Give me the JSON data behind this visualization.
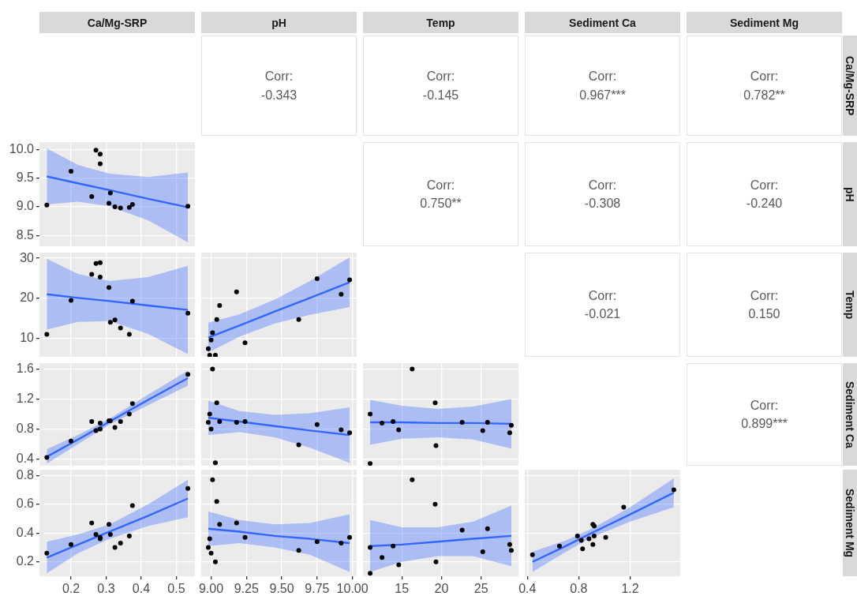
{
  "chart_data": [
    {
      "type": "other",
      "title": "Ca/Mg-SRP"
    },
    {
      "type": "other",
      "title": "pH",
      "annotations": [
        "Corr:",
        "-0.343"
      ]
    },
    {
      "type": "other",
      "title": "Temp",
      "annotations": [
        "Corr:",
        "-0.145"
      ]
    },
    {
      "type": "other",
      "title": "Sediment Ca",
      "annotations": [
        "Corr:",
        "0.967***"
      ]
    },
    {
      "type": "other",
      "title": "Sediment Mg",
      "y2label": "Ca/Mg-SRP",
      "annotations": [
        "Corr:",
        "0.782**"
      ]
    },
    {
      "type": "scatter",
      "xlim": [
        0.11,
        0.553
      ],
      "xticks": [
        0.2,
        0.3,
        0.4,
        0.5
      ],
      "ylim": [
        8.31,
        10.13
      ],
      "yticks": [
        {
          "value": 8.5,
          "label": "8.5"
        },
        {
          "value": 9,
          "label": "9.0"
        },
        9.5,
        {
          "value": 10,
          "label": "10.0"
        }
      ],
      "grid": true,
      "tick_labels": "y",
      "series": [
        {
          "type": "scatter",
          "color": "#000000",
          "x": [
            0.131,
            0.2,
            0.259,
            0.271,
            0.283,
            0.283,
            0.308,
            0.312,
            0.325,
            0.341,
            0.366,
            0.375,
            0.533
          ],
          "values": [
            9.03,
            9.62,
            9.18,
            9.99,
            9.92,
            9.75,
            9.06,
            9.24,
            9.0,
            8.98,
            8.99,
            9.04,
            9.01
          ]
        },
        {
          "type": "line",
          "color": "#3366ff",
          "x": [
            0.131,
            0.22,
            0.31,
            0.42,
            0.533
          ],
          "values": [
            9.53,
            9.41,
            9.29,
            9.14,
            8.99
          ],
          "lower": [
            9.04,
            9.09,
            9.01,
            8.76,
            8.38
          ],
          "upper": [
            10.02,
            9.73,
            9.58,
            9.52,
            9.6
          ]
        }
      ]
    },
    {
      "type": "other",
      "annotations": [
        "Corr:",
        "0.750**"
      ]
    },
    {
      "type": "other",
      "annotations": [
        "Corr:",
        "-0.308"
      ]
    },
    {
      "type": "other",
      "y2label": "pH",
      "annotations": [
        "Corr:",
        "-0.240"
      ]
    },
    {
      "type": "scatter",
      "xlim": [
        0.11,
        0.553
      ],
      "xticks": [
        0.2,
        0.3,
        0.4,
        0.5
      ],
      "ylim": [
        5.4,
        31.4
      ],
      "yticks": [
        10,
        20,
        30
      ],
      "grid": true,
      "tick_labels": "y",
      "series": [
        {
          "type": "scatter",
          "color": "#000000",
          "x": [
            0.131,
            0.2,
            0.259,
            0.271,
            0.283,
            0.283,
            0.308,
            0.312,
            0.325,
            0.341,
            0.366,
            0.375,
            0.533
          ],
          "values": [
            11.0,
            19.5,
            26.0,
            28.7,
            28.9,
            25.3,
            22.7,
            14.0,
            14.6,
            12.6,
            11.0,
            19.3,
            16.3
          ]
        },
        {
          "type": "line",
          "color": "#3366ff",
          "x": [
            0.131,
            0.22,
            0.31,
            0.42,
            0.533
          ],
          "values": [
            21.0,
            20.1,
            19.3,
            18.2,
            17.1
          ],
          "lower": [
            12.2,
            14.1,
            14.3,
            11.1,
            6.1
          ],
          "upper": [
            29.8,
            26.1,
            24.3,
            25.3,
            28.1
          ]
        }
      ]
    },
    {
      "type": "scatter",
      "xlim": [
        8.93,
        10.03
      ],
      "xticks": [
        9,
        9.25,
        9.5,
        9.75,
        10
      ],
      "ylim": [
        5.4,
        31.4
      ],
      "yticks": [
        10,
        20,
        30
      ],
      "grid": true,
      "tick_labels": false,
      "series": [
        {
          "type": "scatter",
          "color": "#000000",
          "x": [
            8.98,
            8.99,
            9.0,
            9.01,
            9.03,
            9.04,
            9.06,
            9.18,
            9.24,
            9.62,
            9.75,
            9.92,
            9.98
          ],
          "values": [
            7.4,
            5.8,
            9.6,
            11.4,
            5.8,
            14.7,
            18.2,
            21.6,
            8.9,
            14.7,
            24.9,
            21.0,
            24.6
          ]
        },
        {
          "type": "line",
          "color": "#3366ff",
          "x": [
            8.98,
            9.2,
            9.45,
            9.7,
            9.98
          ],
          "values": [
            10.2,
            13.2,
            16.7,
            20.1,
            24.0
          ],
          "lower": [
            6.5,
            10.4,
            13.7,
            15.9,
            17.8
          ],
          "upper": [
            13.9,
            16.0,
            19.7,
            24.3,
            30.2
          ]
        }
      ]
    },
    {
      "type": "other",
      "annotations": [
        "Corr:",
        "-0.021"
      ]
    },
    {
      "type": "other",
      "y2label": "Temp",
      "annotations": [
        "Corr:",
        "0.150"
      ]
    },
    {
      "type": "scatter",
      "xlim": [
        0.11,
        0.553
      ],
      "xticks": [
        0.2,
        0.3,
        0.4,
        0.5
      ],
      "ylim": [
        0.31,
        1.68
      ],
      "yticks": [
        0.4,
        0.8,
        1.2,
        1.6
      ],
      "grid": true,
      "tick_labels": "y",
      "series": [
        {
          "type": "scatter",
          "color": "#000000",
          "x": [
            0.131,
            0.2,
            0.259,
            0.271,
            0.283,
            0.283,
            0.308,
            0.312,
            0.325,
            0.341,
            0.366,
            0.375,
            0.533
          ],
          "values": [
            0.42,
            0.64,
            0.9,
            0.78,
            0.88,
            0.8,
            0.91,
            0.91,
            0.82,
            0.9,
            1.0,
            1.14,
            1.53
          ]
        },
        {
          "type": "line",
          "color": "#3366ff",
          "x": [
            0.131,
            0.22,
            0.31,
            0.42,
            0.533
          ],
          "values": [
            0.43,
            0.66,
            0.9,
            1.19,
            1.48
          ],
          "lower": [
            0.34,
            0.6,
            0.86,
            1.12,
            1.38
          ],
          "upper": [
            0.53,
            0.72,
            0.94,
            1.26,
            1.58
          ]
        }
      ]
    },
    {
      "type": "scatter",
      "xlim": [
        8.93,
        10.03
      ],
      "xticks": [
        9,
        9.25,
        9.5,
        9.75,
        10
      ],
      "ylim": [
        0.31,
        1.68
      ],
      "yticks": [
        0.4,
        0.8,
        1.2,
        1.6
      ],
      "grid": true,
      "tick_labels": false,
      "series": [
        {
          "type": "scatter",
          "color": "#000000",
          "x": [
            8.98,
            8.99,
            9.0,
            9.01,
            9.03,
            9.04,
            9.06,
            9.18,
            9.24,
            9.62,
            9.75,
            9.92,
            9.98
          ],
          "values": [
            0.89,
            1.0,
            0.8,
            1.6,
            0.35,
            1.15,
            0.9,
            0.89,
            0.9,
            0.59,
            0.86,
            0.79,
            0.75
          ]
        },
        {
          "type": "line",
          "color": "#3366ff",
          "x": [
            8.98,
            9.2,
            9.45,
            9.7,
            9.98
          ],
          "values": [
            0.95,
            0.9,
            0.84,
            0.78,
            0.72
          ],
          "lower": [
            0.72,
            0.76,
            0.69,
            0.55,
            0.35
          ],
          "upper": [
            1.18,
            1.04,
            0.99,
            1.01,
            1.09
          ]
        }
      ]
    },
    {
      "type": "scatter",
      "xlim": [
        10.1,
        29.7
      ],
      "xticks": [
        15,
        20,
        25
      ],
      "ylim": [
        0.31,
        1.68
      ],
      "yticks": [
        0.4,
        0.8,
        1.2,
        1.6
      ],
      "grid": true,
      "tick_labels": false,
      "series": [
        {
          "type": "scatter",
          "color": "#000000",
          "x": [
            11.0,
            12.5,
            13.9,
            14.6,
            16.3,
            19.2,
            19.3,
            22.6,
            25.2,
            25.8,
            28.6,
            28.8,
            11.0
          ],
          "values": [
            1.0,
            0.88,
            0.9,
            0.79,
            1.6,
            1.15,
            0.58,
            0.89,
            0.78,
            0.89,
            0.75,
            0.85,
            0.34
          ]
        },
        {
          "type": "line",
          "color": "#3366ff",
          "x": [
            11.0,
            15.0,
            19.5,
            24.0,
            28.8
          ],
          "values": [
            0.89,
            0.89,
            0.88,
            0.88,
            0.87
          ],
          "lower": [
            0.59,
            0.67,
            0.69,
            0.66,
            0.54
          ],
          "upper": [
            1.19,
            1.11,
            1.07,
            1.1,
            1.2
          ]
        }
      ]
    },
    {
      "type": "other",
      "y2label": "Sediment Ca",
      "annotations": [
        "Corr:",
        "0.899***"
      ]
    },
    {
      "type": "scatter",
      "xlim": [
        0.11,
        0.553
      ],
      "xticks": [
        0.2,
        0.3,
        0.4,
        0.5
      ],
      "ylim": [
        0.1,
        0.84
      ],
      "yticks": [
        0.2,
        0.4,
        0.6,
        0.8
      ],
      "grid": true,
      "series": [
        {
          "type": "scatter",
          "color": "#000000",
          "x": [
            0.131,
            0.2,
            0.259,
            0.271,
            0.283,
            0.283,
            0.308,
            0.312,
            0.325,
            0.341,
            0.366,
            0.375,
            0.533
          ],
          "values": [
            0.26,
            0.32,
            0.47,
            0.39,
            0.37,
            0.36,
            0.46,
            0.39,
            0.3,
            0.33,
            0.38,
            0.59,
            0.71
          ]
        },
        {
          "type": "line",
          "color": "#3366ff",
          "x": [
            0.131,
            0.22,
            0.31,
            0.42,
            0.533
          ],
          "values": [
            0.23,
            0.32,
            0.41,
            0.52,
            0.64
          ],
          "lower": [
            0.12,
            0.26,
            0.36,
            0.45,
            0.51
          ],
          "upper": [
            0.34,
            0.39,
            0.46,
            0.6,
            0.77
          ]
        }
      ]
    },
    {
      "type": "scatter",
      "xlim": [
        8.93,
        10.03
      ],
      "xticks": [
        {
          "value": 9,
          "label": "9.00"
        },
        9.25,
        {
          "value": 9.5,
          "label": "9.50"
        },
        9.75,
        {
          "value": 10,
          "label": "10.00"
        }
      ],
      "ylim": [
        0.1,
        0.84
      ],
      "yticks": [
        0.2,
        0.4,
        0.6,
        0.8
      ],
      "grid": true,
      "tick_labels": "x",
      "series": [
        {
          "type": "scatter",
          "color": "#000000",
          "x": [
            8.98,
            8.99,
            9.0,
            9.01,
            9.03,
            9.04,
            9.06,
            9.18,
            9.24,
            9.62,
            9.75,
            9.92,
            9.98
          ],
          "values": [
            0.3,
            0.36,
            0.26,
            0.77,
            0.2,
            0.62,
            0.46,
            0.47,
            0.37,
            0.28,
            0.34,
            0.33,
            0.37
          ]
        },
        {
          "type": "line",
          "color": "#3366ff",
          "x": [
            8.98,
            9.2,
            9.45,
            9.7,
            9.98
          ],
          "values": [
            0.43,
            0.41,
            0.38,
            0.36,
            0.33
          ],
          "lower": [
            0.31,
            0.33,
            0.3,
            0.25,
            0.13
          ],
          "upper": [
            0.55,
            0.49,
            0.46,
            0.47,
            0.53
          ]
        }
      ]
    },
    {
      "type": "scatter",
      "xlim": [
        10.1,
        29.7
      ],
      "xticks": [
        15,
        20,
        25
      ],
      "ylim": [
        0.1,
        0.84
      ],
      "yticks": [
        0.2,
        0.4,
        0.6,
        0.8
      ],
      "grid": true,
      "tick_labels": "x",
      "series": [
        {
          "type": "scatter",
          "color": "#000000",
          "x": [
            11.0,
            12.5,
            13.9,
            14.6,
            16.3,
            19.2,
            19.3,
            22.6,
            25.2,
            25.8,
            28.6,
            28.8,
            11.0
          ],
          "values": [
            0.3,
            0.23,
            0.31,
            0.18,
            0.77,
            0.6,
            0.2,
            0.42,
            0.27,
            0.43,
            0.32,
            0.28,
            0.12
          ]
        },
        {
          "type": "line",
          "color": "#3366ff",
          "x": [
            11.0,
            15.0,
            19.5,
            24.0,
            28.8
          ],
          "values": [
            0.31,
            0.32,
            0.34,
            0.36,
            0.38
          ],
          "lower": [
            0.13,
            0.2,
            0.24,
            0.24,
            0.17
          ],
          "upper": [
            0.49,
            0.44,
            0.44,
            0.48,
            0.59
          ]
        }
      ]
    },
    {
      "type": "scatter",
      "xlim": [
        0.38,
        1.59
      ],
      "xticks": [
        0.4,
        0.8,
        1.2
      ],
      "ylim": [
        0.1,
        0.84
      ],
      "yticks": [
        0.2,
        0.4,
        0.6,
        0.8
      ],
      "grid": true,
      "tick_labels": "x",
      "series": [
        {
          "type": "scatter",
          "color": "#000000",
          "x": [
            0.44,
            0.65,
            0.79,
            0.82,
            0.83,
            0.88,
            0.91,
            0.92,
            0.91,
            0.92,
            1.01,
            1.15,
            1.54
          ],
          "values": [
            0.25,
            0.31,
            0.38,
            0.35,
            0.29,
            0.36,
            0.46,
            0.45,
            0.32,
            0.38,
            0.37,
            0.58,
            0.7
          ]
        },
        {
          "type": "line",
          "color": "#3366ff",
          "x": [
            0.44,
            0.7,
            0.9,
            1.2,
            1.54
          ],
          "values": [
            0.2,
            0.31,
            0.4,
            0.53,
            0.68
          ],
          "lower": [
            0.13,
            0.27,
            0.37,
            0.48,
            0.58
          ],
          "upper": [
            0.27,
            0.35,
            0.43,
            0.58,
            0.78
          ]
        }
      ]
    },
    {
      "type": "other",
      "y2label": "Sediment Mg"
    }
  ]
}
